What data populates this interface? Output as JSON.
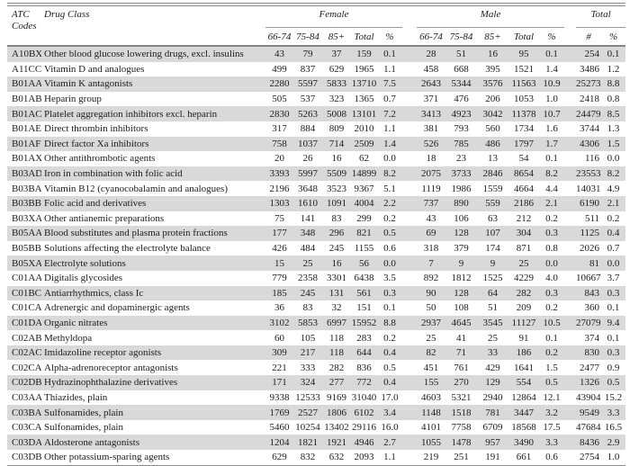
{
  "table": {
    "header": {
      "atc_codes": "ATC Codes",
      "drug_class": "Drug Class",
      "groups": {
        "female": "Female",
        "male": "Male",
        "total": "Total"
      },
      "age_subheaders": [
        "66-74",
        "75-84",
        "85+",
        "Total",
        "%"
      ],
      "total_subheaders": [
        "#",
        "%"
      ]
    },
    "rows": [
      {
        "code": "A10BX",
        "name": "Other blood glucose lowering drugs, excl. insulins",
        "female": [
          43,
          79,
          37,
          159,
          "0.1"
        ],
        "male": [
          28,
          51,
          16,
          95,
          "0.1"
        ],
        "total": [
          254,
          "0.1"
        ]
      },
      {
        "code": "A11CC",
        "name": "Vitamin D and analogues",
        "female": [
          499,
          837,
          629,
          1965,
          "1.1"
        ],
        "male": [
          458,
          668,
          395,
          1521,
          "1.4"
        ],
        "total": [
          3486,
          "1.2"
        ]
      },
      {
        "code": "B01AA",
        "name": "Vitamin K antagonists",
        "female": [
          2280,
          5597,
          5833,
          13710,
          "7.5"
        ],
        "male": [
          2643,
          5344,
          3576,
          11563,
          "10.9"
        ],
        "total": [
          25273,
          "8.8"
        ]
      },
      {
        "code": "B01AB",
        "name": "Heparin group",
        "female": [
          505,
          537,
          323,
          1365,
          "0.7"
        ],
        "male": [
          371,
          476,
          206,
          1053,
          "1.0"
        ],
        "total": [
          2418,
          "0.8"
        ]
      },
      {
        "code": "B01AC",
        "name": "Platelet aggregation inhibitors excl. heparin",
        "female": [
          2830,
          5263,
          5008,
          13101,
          "7.2"
        ],
        "male": [
          3413,
          4923,
          3042,
          11378,
          "10.7"
        ],
        "total": [
          24479,
          "8.5"
        ]
      },
      {
        "code": "B01AE",
        "name": "Direct thrombin inhibitors",
        "female": [
          317,
          884,
          809,
          2010,
          "1.1"
        ],
        "male": [
          381,
          793,
          560,
          1734,
          "1.6"
        ],
        "total": [
          3744,
          "1.3"
        ]
      },
      {
        "code": "B01AF",
        "name": "Direct factor Xa inhibitors",
        "female": [
          758,
          1037,
          714,
          2509,
          "1.4"
        ],
        "male": [
          526,
          785,
          486,
          1797,
          "1.7"
        ],
        "total": [
          4306,
          "1.5"
        ]
      },
      {
        "code": "B01AX",
        "name": "Other antithrombotic agents",
        "female": [
          20,
          26,
          16,
          62,
          "0.0"
        ],
        "male": [
          18,
          23,
          13,
          54,
          "0.1"
        ],
        "total": [
          116,
          "0.0"
        ]
      },
      {
        "code": "B03AD",
        "name": "Iron in combination with folic acid",
        "female": [
          3393,
          5997,
          5509,
          14899,
          "8.2"
        ],
        "male": [
          2075,
          3733,
          2846,
          8654,
          "8.2"
        ],
        "total": [
          23553,
          "8.2"
        ]
      },
      {
        "code": "B03BA",
        "name": "Vitamin B12 (cyanocobalamin and analogues)",
        "female": [
          2196,
          3648,
          3523,
          9367,
          "5.1"
        ],
        "male": [
          1119,
          1986,
          1559,
          4664,
          "4.4"
        ],
        "total": [
          14031,
          "4.9"
        ]
      },
      {
        "code": "B03BB",
        "name": "Folic acid and derivatives",
        "female": [
          1303,
          1610,
          1091,
          4004,
          "2.2"
        ],
        "male": [
          737,
          890,
          559,
          2186,
          "2.1"
        ],
        "total": [
          6190,
          "2.1"
        ]
      },
      {
        "code": "B03XA",
        "name": "Other antianemic preparations",
        "female": [
          75,
          141,
          83,
          299,
          "0.2"
        ],
        "male": [
          43,
          106,
          63,
          212,
          "0.2"
        ],
        "total": [
          511,
          "0.2"
        ]
      },
      {
        "code": "B05AA",
        "name": "Blood substitutes and plasma protein fractions",
        "female": [
          177,
          348,
          296,
          821,
          "0.5"
        ],
        "male": [
          69,
          128,
          107,
          304,
          "0.3"
        ],
        "total": [
          1125,
          "0.4"
        ]
      },
      {
        "code": "B05BB",
        "name": "Solutions affecting the electrolyte balance",
        "female": [
          426,
          484,
          245,
          1155,
          "0.6"
        ],
        "male": [
          318,
          379,
          174,
          871,
          "0.8"
        ],
        "total": [
          2026,
          "0.7"
        ]
      },
      {
        "code": "B05XA",
        "name": "Electrolyte solutions",
        "female": [
          15,
          25,
          16,
          56,
          "0.0"
        ],
        "male": [
          7,
          9,
          9,
          25,
          "0.0"
        ],
        "total": [
          81,
          "0.0"
        ]
      },
      {
        "code": "C01AA",
        "name": "Digitalis glycosides",
        "female": [
          779,
          2358,
          3301,
          6438,
          "3.5"
        ],
        "male": [
          892,
          1812,
          1525,
          4229,
          "4.0"
        ],
        "total": [
          10667,
          "3.7"
        ]
      },
      {
        "code": "C01BC",
        "name": "Antiarrhythmics, class Ic",
        "female": [
          185,
          245,
          131,
          561,
          "0.3"
        ],
        "male": [
          90,
          128,
          64,
          282,
          "0.3"
        ],
        "total": [
          843,
          "0.3"
        ]
      },
      {
        "code": "C01CA",
        "name": "Adrenergic and dopaminergic agents",
        "female": [
          36,
          83,
          32,
          151,
          "0.1"
        ],
        "male": [
          50,
          108,
          51,
          209,
          "0.2"
        ],
        "total": [
          360,
          "0.1"
        ]
      },
      {
        "code": "C01DA",
        "name": "Organic nitrates",
        "female": [
          3102,
          5853,
          6997,
          15952,
          "8.8"
        ],
        "male": [
          2937,
          4645,
          3545,
          11127,
          "10.5"
        ],
        "total": [
          27079,
          "9.4"
        ]
      },
      {
        "code": "C02AB",
        "name": "Methyldopa",
        "female": [
          60,
          105,
          118,
          283,
          "0.2"
        ],
        "male": [
          25,
          41,
          25,
          91,
          "0.1"
        ],
        "total": [
          374,
          "0.1"
        ]
      },
      {
        "code": "C02AC",
        "name": "Imidazoline receptor agonists",
        "female": [
          309,
          217,
          118,
          644,
          "0.4"
        ],
        "male": [
          82,
          71,
          33,
          186,
          "0.2"
        ],
        "total": [
          830,
          "0.3"
        ]
      },
      {
        "code": "C02CA",
        "name": "Alpha-adrenoreceptor antagonists",
        "female": [
          221,
          333,
          282,
          836,
          "0.5"
        ],
        "male": [
          451,
          761,
          429,
          1641,
          "1.5"
        ],
        "total": [
          2477,
          "0.9"
        ]
      },
      {
        "code": "C02DB",
        "name": "Hydrazinophthalazine derivatives",
        "female": [
          171,
          324,
          277,
          772,
          "0.4"
        ],
        "male": [
          155,
          270,
          129,
          554,
          "0.5"
        ],
        "total": [
          1326,
          "0.5"
        ]
      },
      {
        "code": "C03AA",
        "name": "Thiazides, plain",
        "female": [
          9338,
          12533,
          9169,
          31040,
          "17.0"
        ],
        "male": [
          4603,
          5321,
          2940,
          12864,
          "12.1"
        ],
        "total": [
          43904,
          "15.2"
        ]
      },
      {
        "code": "C03BA",
        "name": "Sulfonamides, plain",
        "female": [
          1769,
          2527,
          1806,
          6102,
          "3.4"
        ],
        "male": [
          1148,
          1518,
          781,
          3447,
          "3.2"
        ],
        "total": [
          9549,
          "3.3"
        ]
      },
      {
        "code": "C03CA",
        "name": "Sulfonamides, plain",
        "female": [
          5460,
          10254,
          13402,
          29116,
          "16.0"
        ],
        "male": [
          4101,
          7758,
          6709,
          18568,
          "17.5"
        ],
        "total": [
          47684,
          "16.5"
        ]
      },
      {
        "code": "C03DA",
        "name": "Aldosterone antagonists",
        "female": [
          1204,
          1821,
          1921,
          4946,
          "2.7"
        ],
        "male": [
          1055,
          1478,
          957,
          3490,
          "3.3"
        ],
        "total": [
          8436,
          "2.9"
        ]
      },
      {
        "code": "C03DB",
        "name": "Other potassium-sparing agents",
        "female": [
          629,
          832,
          632,
          2093,
          "1.1"
        ],
        "male": [
          219,
          251,
          191,
          661,
          "0.6"
        ],
        "total": [
          2754,
          "1.0"
        ]
      }
    ]
  },
  "colors": {
    "stripe": "#d9d9d9",
    "rule": "#8a8a8a",
    "text": "#1c1c1c"
  }
}
